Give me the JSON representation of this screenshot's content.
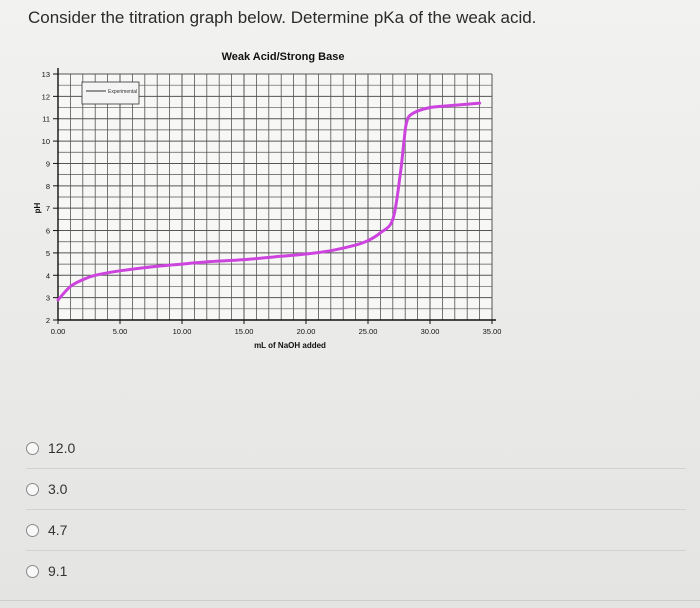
{
  "question": "Consider the titration graph below. Determine pKa of the weak acid.",
  "options": [
    "12.0",
    "3.0",
    "4.7",
    "9.1"
  ],
  "chart_data": {
    "type": "line",
    "title": "Weak Acid/Strong Base",
    "xlabel": "mL of NaOH added",
    "ylabel": "pH",
    "xlim": [
      0,
      35
    ],
    "ylim": [
      2,
      13
    ],
    "x_ticks": [
      "0.00",
      "5.00",
      "10.00",
      "15.00",
      "20.00",
      "25.00",
      "30.00",
      "35.00"
    ],
    "y_ticks": [
      "2",
      "3",
      "4",
      "5",
      "6",
      "7",
      "8",
      "9",
      "10",
      "11",
      "12",
      "13"
    ],
    "grid": true,
    "legend": "top-left",
    "series": [
      {
        "name": "Experimental",
        "color": "#cc44dd",
        "x": [
          0,
          1,
          2,
          3,
          5,
          8,
          10,
          12,
          15,
          18,
          20,
          22,
          24,
          25,
          26,
          27,
          27.6,
          27.9,
          28.1,
          28.5,
          30,
          32,
          34
        ],
        "y": [
          2.9,
          3.5,
          3.8,
          4.0,
          4.2,
          4.4,
          4.5,
          4.6,
          4.7,
          4.85,
          4.95,
          5.1,
          5.35,
          5.55,
          5.9,
          6.5,
          8.5,
          10.0,
          10.8,
          11.2,
          11.5,
          11.6,
          11.7
        ]
      }
    ]
  }
}
